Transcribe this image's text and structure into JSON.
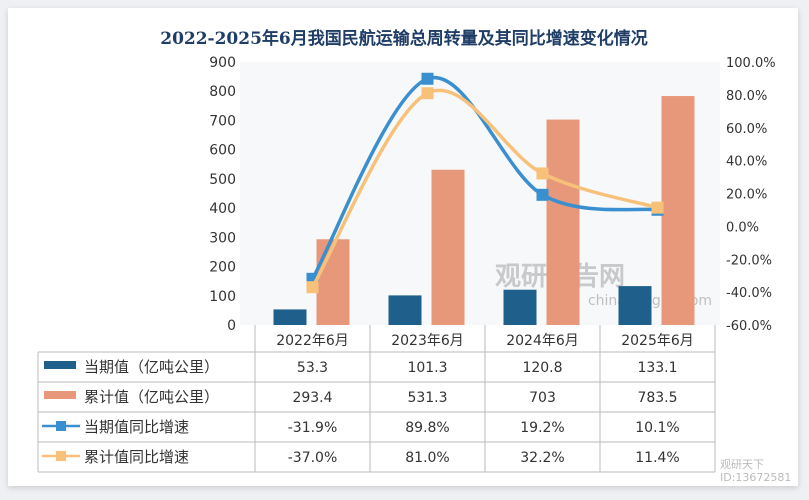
{
  "chart_data": {
    "type": "bar+line",
    "title": "2022-2025年6月我国民航运输总周转量及其同比增速变化情况",
    "categories": [
      "2022年6月",
      "2023年6月",
      "2024年6月",
      "2025年6月"
    ],
    "left_axis": {
      "range": [
        0,
        900
      ],
      "ticks": [
        "0",
        "100",
        "200",
        "300",
        "400",
        "500",
        "600",
        "700",
        "800",
        "900"
      ]
    },
    "right_axis": {
      "range": [
        -60,
        100
      ],
      "ticks": [
        "-60.0%",
        "-40.0%",
        "-20.0%",
        "0.0%",
        "20.0%",
        "40.0%",
        "60.0%",
        "80.0%",
        "100.0%"
      ]
    },
    "series": [
      {
        "name": "当期值（亿吨公里）",
        "type": "bar",
        "axis": "left",
        "color": "#1f5f8b",
        "values": [
          53.3,
          101.3,
          120.8,
          133.1
        ],
        "labels": [
          "53.3",
          "101.3",
          "120.8",
          "133.1"
        ]
      },
      {
        "name": "累计值（亿吨公里）",
        "type": "bar",
        "axis": "left",
        "color": "#e8987a",
        "values": [
          293.4,
          531.3,
          703,
          783.5
        ],
        "labels": [
          "293.4",
          "531.3",
          "703",
          "783.5"
        ]
      },
      {
        "name": "当期值同比增速",
        "type": "line",
        "axis": "right",
        "color": "#3a8fd0",
        "values": [
          -31.9,
          89.8,
          19.2,
          10.1
        ],
        "labels": [
          "-31.9%",
          "89.8%",
          "19.2%",
          "10.1%"
        ]
      },
      {
        "name": "累计值同比增速",
        "type": "line",
        "axis": "right",
        "color": "#f7c17a",
        "values": [
          -37.0,
          81.0,
          32.2,
          11.4
        ],
        "labels": [
          "-37.0%",
          "81.0%",
          "32.2%",
          "11.4%"
        ]
      }
    ],
    "watermark": "观研报告网 chinabaogao.com"
  },
  "corner_mark": {
    "line1": "观研天下",
    "line2": "ID:13672581"
  }
}
